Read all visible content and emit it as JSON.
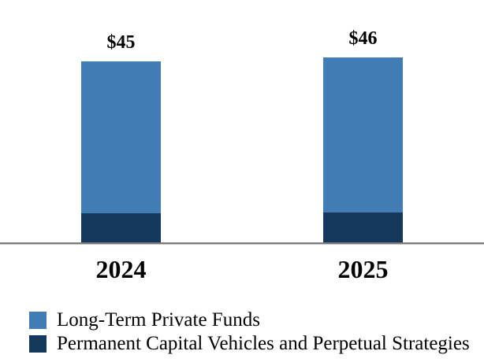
{
  "chart_data": {
    "type": "bar",
    "stacked": true,
    "title": "",
    "categories": [
      "2024",
      "2025"
    ],
    "series": [
      {
        "name": "Long-Term Private Funds",
        "color": "#417DB4",
        "stack_position": "top",
        "values": [
          37.5,
          38.25
        ]
      },
      {
        "name": "Permanent Capital Vehicles and Perpetual Strategies",
        "color": "#14395C",
        "stack_position": "bottom",
        "values": [
          7.5,
          7.75
        ]
      }
    ],
    "totals": [
      45,
      46
    ],
    "total_labels": [
      "$45",
      "$46"
    ],
    "value_prefix": "$",
    "segments_estimated": true,
    "axis": {
      "baseline_color": "#7D7D7D",
      "gridlines": false,
      "y_axis_visible": false
    },
    "legend_position": "bottom-left"
  },
  "legend": {
    "items": [
      {
        "label": "Long-Term Private Funds",
        "color": "#417DB4"
      },
      {
        "label": "Permanent Capital Vehicles and Perpetual Strategies",
        "color": "#14395C"
      }
    ]
  }
}
